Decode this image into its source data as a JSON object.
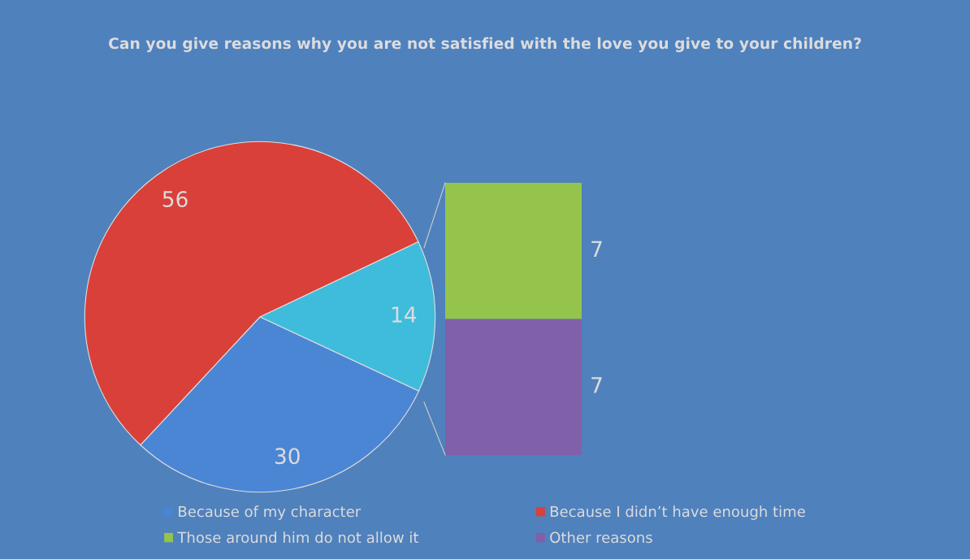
{
  "chart_data": [
    {
      "type": "pie",
      "title": "Can you give reasons why you are not satisfied with the love you give to your children?",
      "categories": [
        "Because of my character",
        null,
        "Because I didn’t have enough time"
      ],
      "values": [
        30,
        14,
        56
      ],
      "colors": [
        "#4a86d4",
        "#3fbcdc",
        "#d9403a"
      ],
      "data_labels": true,
      "legend": "bottom"
    },
    {
      "type": "bar",
      "stacked": true,
      "categories": [
        null
      ],
      "series": [
        {
          "name": "Other reasons",
          "color": "#8060a8",
          "values": [
            7
          ]
        },
        {
          "name": "Those around him do not allow it",
          "color": "#94c44c",
          "values": [
            7
          ]
        }
      ],
      "data_labels": true,
      "legend": "bottom"
    }
  ]
}
